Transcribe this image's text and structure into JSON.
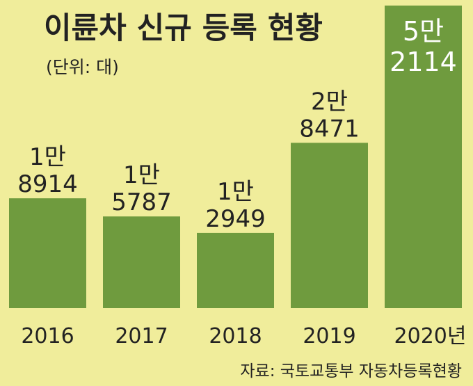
{
  "chart_data": {
    "type": "bar",
    "title": "이륜차 신규 등록 현황",
    "subtitle": "(단위: 대)",
    "categories": [
      "2016",
      "2017",
      "2018",
      "2019",
      "2020년"
    ],
    "values": [
      18914,
      15787,
      12949,
      28471,
      52114
    ],
    "value_labels": [
      [
        "1만",
        "8914"
      ],
      [
        "1만",
        "5787"
      ],
      [
        "1만",
        "2949"
      ],
      [
        "2만",
        "8471"
      ],
      [
        "5만",
        "2114"
      ]
    ],
    "source": "자료: 국토교통부 자동차등록현황",
    "grid": false,
    "legend": "none"
  },
  "colors": {
    "background": "#f0ed9b",
    "bar": "#6f9b3e",
    "text": "#222222",
    "highlight_text": "#ffffff"
  }
}
